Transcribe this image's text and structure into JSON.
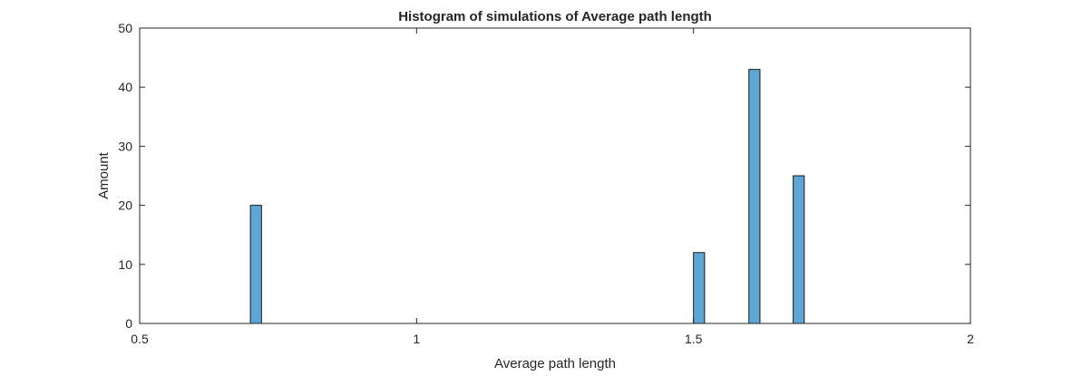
{
  "chart_data": {
    "type": "bar",
    "title": "Histogram of simulations of Average path length",
    "xlabel": "Average path length",
    "ylabel": "Amount",
    "xlim": [
      0.5,
      2
    ],
    "ylim": [
      0,
      50
    ],
    "xticks": [
      "0.5",
      "1",
      "1.5",
      "2"
    ],
    "yticks": [
      "0",
      "10",
      "20",
      "30",
      "40",
      "50"
    ],
    "bin_width": 0.02,
    "bars": [
      {
        "x": 0.71,
        "value": 20
      },
      {
        "x": 1.51,
        "value": 12
      },
      {
        "x": 1.61,
        "value": 43
      },
      {
        "x": 1.69,
        "value": 25
      }
    ],
    "grid": false,
    "legend": "none",
    "colors": {
      "bar_fill": "#5ea6d6",
      "bar_edge": "#1a1a1a",
      "axes": "#262626"
    }
  }
}
